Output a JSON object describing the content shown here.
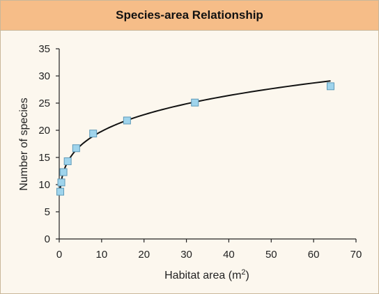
{
  "chart_data": {
    "type": "scatter",
    "title": "Species-area Relationship",
    "xlabel": "Habitat area",
    "xlabel_unit_base": "m",
    "xlabel_unit_exp": "2",
    "ylabel": "Number of species",
    "xlim": [
      0,
      70
    ],
    "ylim": [
      0,
      35
    ],
    "x_ticks": [
      "0",
      "10",
      "20",
      "30",
      "40",
      "50",
      "60",
      "70"
    ],
    "y_ticks": [
      "0",
      "5",
      "10",
      "15",
      "20",
      "25",
      "30",
      "35"
    ],
    "grid": false,
    "legend": "none",
    "points": {
      "x": [
        0.25,
        0.5,
        1,
        2,
        4,
        8,
        16,
        32,
        64
      ],
      "y": [
        8.7,
        10.4,
        12.3,
        14.3,
        16.7,
        19.4,
        21.8,
        25.1,
        28.1
      ]
    },
    "trendline": {
      "type": "power",
      "a": 12.3,
      "b": 0.207
    },
    "colors": {
      "marker_fill": "#9fd4ec",
      "marker_stroke": "#5e9ab8",
      "curve": "#111111",
      "axis": "#222222",
      "title_bar": "#f6bd88",
      "background": "#fcf7ee"
    }
  }
}
